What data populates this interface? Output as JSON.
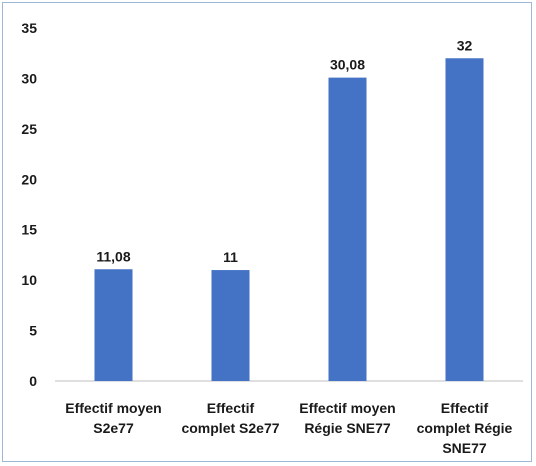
{
  "chart_data": {
    "type": "bar",
    "categories": [
      [
        "Effectif moyen",
        "S2e77"
      ],
      [
        "Effectif",
        "complet S2e77"
      ],
      [
        "Effectif moyen",
        "Régie SNE77"
      ],
      [
        "Effectif",
        "complet Régie",
        "SNE77"
      ]
    ],
    "values": [
      11.08,
      11,
      30.08,
      32
    ],
    "data_labels": [
      "11,08",
      "11",
      "30,08",
      "32"
    ],
    "y_ticks": [
      "0",
      "5",
      "10",
      "15",
      "20",
      "25",
      "30",
      "35"
    ],
    "ylim": [
      0,
      35
    ],
    "title": "",
    "xlabel": "",
    "ylabel": "",
    "bar_color": "#4472c4",
    "grid": false,
    "legend": "none"
  }
}
